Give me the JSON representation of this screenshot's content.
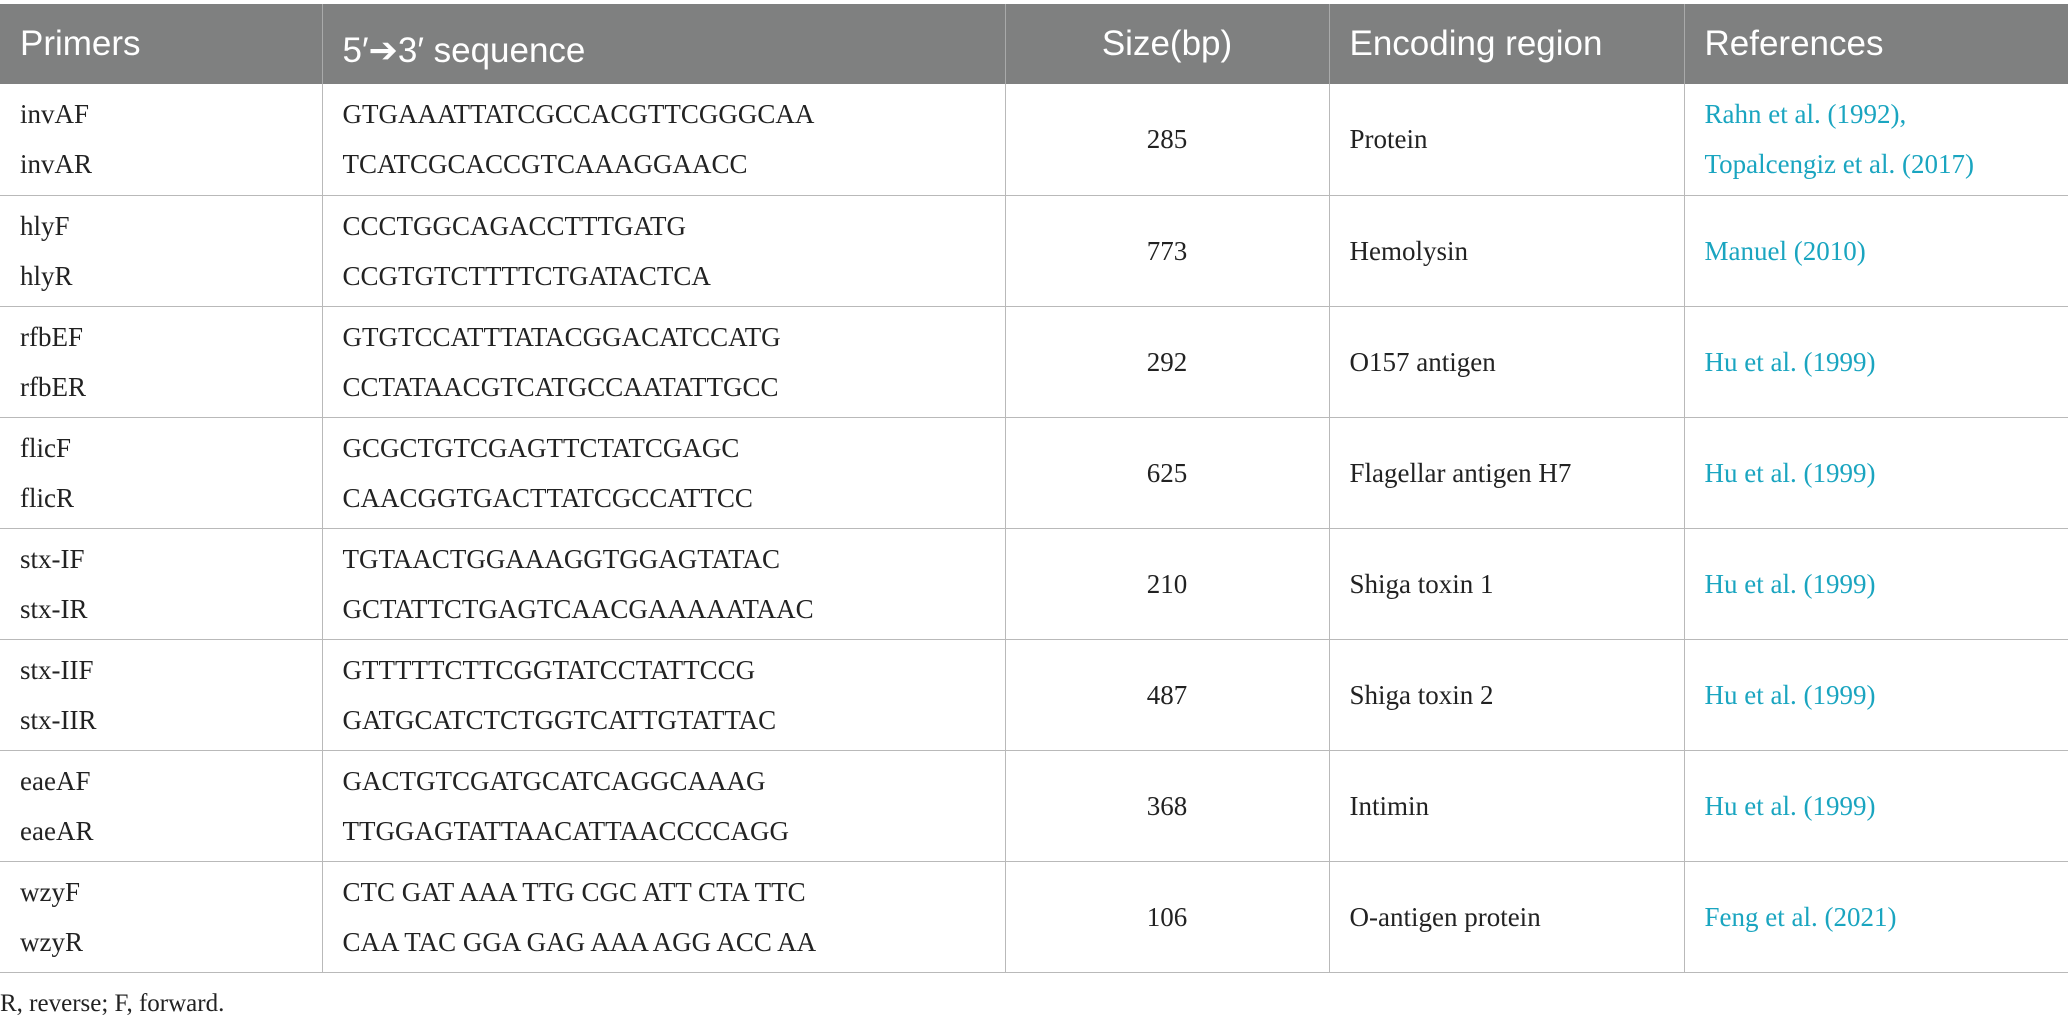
{
  "table": {
    "headers": {
      "primers": "Primers",
      "sequence": "5′➔3′ sequence",
      "size": "Size(bp)",
      "region": "Encoding region",
      "references": "References"
    },
    "rows": [
      {
        "primers": [
          "invAF",
          "invAR"
        ],
        "sequence": [
          "GTGAAATTATCGCCACGTTCGGGCAA",
          "TCATCGCACCGTCAAAGGAACC"
        ],
        "size": "285",
        "region": "Protein",
        "references": [
          "Rahn et al. (1992),",
          "Topalcengiz et al. (2017)"
        ]
      },
      {
        "primers": [
          "hlyF",
          "hlyR"
        ],
        "sequence": [
          "CCCTGGCAGACCTTTGATG",
          "CCGTGTCTTTTCTGATACTCA"
        ],
        "size": "773",
        "region": "Hemolysin",
        "references": [
          "Manuel (2010)"
        ]
      },
      {
        "primers": [
          "rfbEF",
          "rfbER"
        ],
        "sequence": [
          "GTGTCCATTTATACGGACATCCATG",
          "CCTATAACGTCATGCCAATATTGCC"
        ],
        "size": "292",
        "region": "O157 antigen",
        "references": [
          "Hu et al. (1999)"
        ]
      },
      {
        "primers": [
          "flicF",
          "flicR"
        ],
        "sequence": [
          "GCGCTGTCGAGTTCTATCGAGC",
          "CAACGGTGACTTATCGCCATTCC"
        ],
        "size": "625",
        "region": "Flagellar antigen H7",
        "references": [
          "Hu et al. (1999)"
        ]
      },
      {
        "primers": [
          "stx-IF",
          "stx-IR"
        ],
        "sequence": [
          "TGTAACTGGAAAGGTGGAGTATAC",
          "GCTATTCTGAGTCAACGAAAAATAAC"
        ],
        "size": "210",
        "region": "Shiga toxin 1",
        "references": [
          "Hu et al. (1999)"
        ]
      },
      {
        "primers": [
          "stx-IIF",
          "stx-IIR"
        ],
        "sequence": [
          "GTTTTTCTTCGGTATCCTATTCCG",
          "GATGCATCTCTGGTCATTGTATTAC"
        ],
        "size": "487",
        "region": "Shiga toxin 2",
        "references": [
          "Hu et al. (1999)"
        ]
      },
      {
        "primers": [
          "eaeAF",
          "eaeAR"
        ],
        "sequence": [
          "GACTGTCGATGCATCAGGCAAAG",
          "TTGGAGTATTAACATTAACCCCAGG"
        ],
        "size": "368",
        "region": "Intimin",
        "references": [
          "Hu et al. (1999)"
        ]
      },
      {
        "primers": [
          "wzyF",
          "wzyR"
        ],
        "sequence": [
          "CTC GAT AAA TTG CGC ATT CTA TTC",
          "CAA TAC GGA GAG AAA AGG ACC AA"
        ],
        "size": "106",
        "region": "O-antigen protein",
        "references": [
          "Feng et al. (2021)"
        ]
      }
    ]
  },
  "footnote": "R, reverse; F, forward.",
  "colors": {
    "header_bg": "#7f8080",
    "link": "#1aa5c0"
  }
}
